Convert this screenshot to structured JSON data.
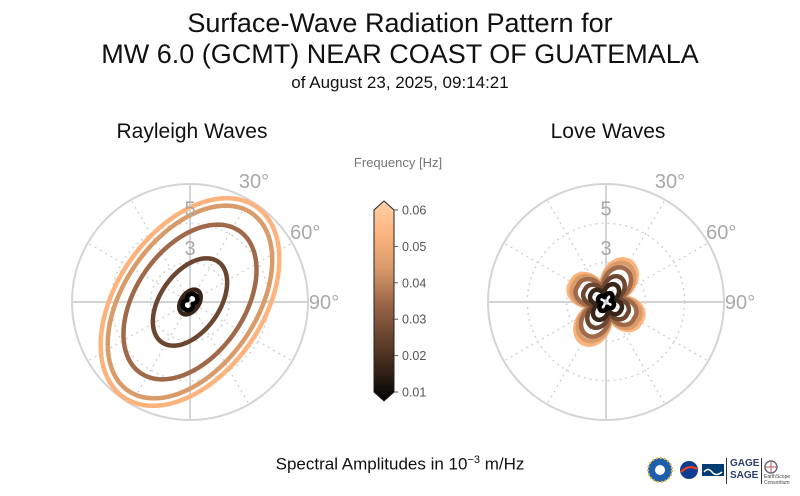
{
  "title": {
    "line1": "Surface-Wave Radiation Pattern for",
    "line2": "MW 6.0 (GCMT) NEAR COAST OF GUATEMALA",
    "line3": "of August 23, 2025, 09:14:21"
  },
  "footer": {
    "prefix": "Spectral Amplitudes in ",
    "base": "10",
    "exponent": "−3",
    "unit": " m/Hz"
  },
  "logos": {
    "gage": "GAGE",
    "sage": "SAGE",
    "earthscope": "EarthScope",
    "consortium": "Consortium"
  },
  "chart_data": [
    {
      "type": "polar",
      "title": "Rayleigh Waves",
      "radial_ticks": [
        "3",
        "5"
      ],
      "angle_ticks": [
        "30°",
        "60°",
        "90°"
      ],
      "rmax": 6,
      "grid": true,
      "series": [
        {
          "frequency": 0.01,
          "color": "#000000",
          "a": 0.45,
          "b": 0.16,
          "shape": "figure8",
          "tilt": 35
        },
        {
          "frequency": 0.02,
          "color": "#3a2519",
          "a": 0.7,
          "b": 0.45,
          "shape": "ellipse",
          "tilt": 35
        },
        {
          "frequency": 0.03,
          "color": "#6b4630",
          "a": 2.5,
          "b": 1.5,
          "shape": "ellipse",
          "tilt": 35
        },
        {
          "frequency": 0.04,
          "color": "#a0694a",
          "a": 4.4,
          "b": 2.75,
          "shape": "ellipse",
          "tilt": 35
        },
        {
          "frequency": 0.05,
          "color": "#d99b6a",
          "a": 5.5,
          "b": 3.35,
          "shape": "ellipse",
          "tilt": 35
        },
        {
          "frequency": 0.06,
          "color": "#fdb37e",
          "a": 5.9,
          "b": 3.7,
          "shape": "ellipse",
          "tilt": 35
        }
      ]
    },
    {
      "type": "polar",
      "title": "Love Waves",
      "radial_ticks": [
        "3",
        "5"
      ],
      "angle_ticks": [
        "30°",
        "60°",
        "90°"
      ],
      "rmax": 6,
      "grid": true,
      "series": [
        {
          "frequency": 0.01,
          "color": "#000000",
          "a": 0.5,
          "b": 0.24,
          "shape": "quadrupole"
        },
        {
          "frequency": 0.02,
          "color": "#3a2519",
          "a": 1.0,
          "b": 0.45,
          "shape": "quadrupole"
        },
        {
          "frequency": 0.03,
          "color": "#6b4630",
          "a": 1.45,
          "b": 0.6,
          "shape": "quadrupole"
        },
        {
          "frequency": 0.04,
          "color": "#a0694a",
          "a": 1.95,
          "b": 0.75,
          "shape": "quadrupole"
        },
        {
          "frequency": 0.05,
          "color": "#d99b6a",
          "a": 2.2,
          "b": 0.85,
          "shape": "quadrupole"
        },
        {
          "frequency": 0.06,
          "color": "#fdb37e",
          "a": 2.4,
          "b": 0.9,
          "shape": "quadrupole"
        }
      ]
    }
  ],
  "colorbar": {
    "label": "Frequency [Hz]",
    "ticks": [
      "0.01",
      "0.02",
      "0.03",
      "0.04",
      "0.05",
      "0.06"
    ],
    "min": 0.01,
    "max": 0.06,
    "colors": [
      "#000000",
      "#3a2519",
      "#6b4630",
      "#a0694a",
      "#d99b6a",
      "#fdb37e",
      "#ffd2a8"
    ]
  }
}
